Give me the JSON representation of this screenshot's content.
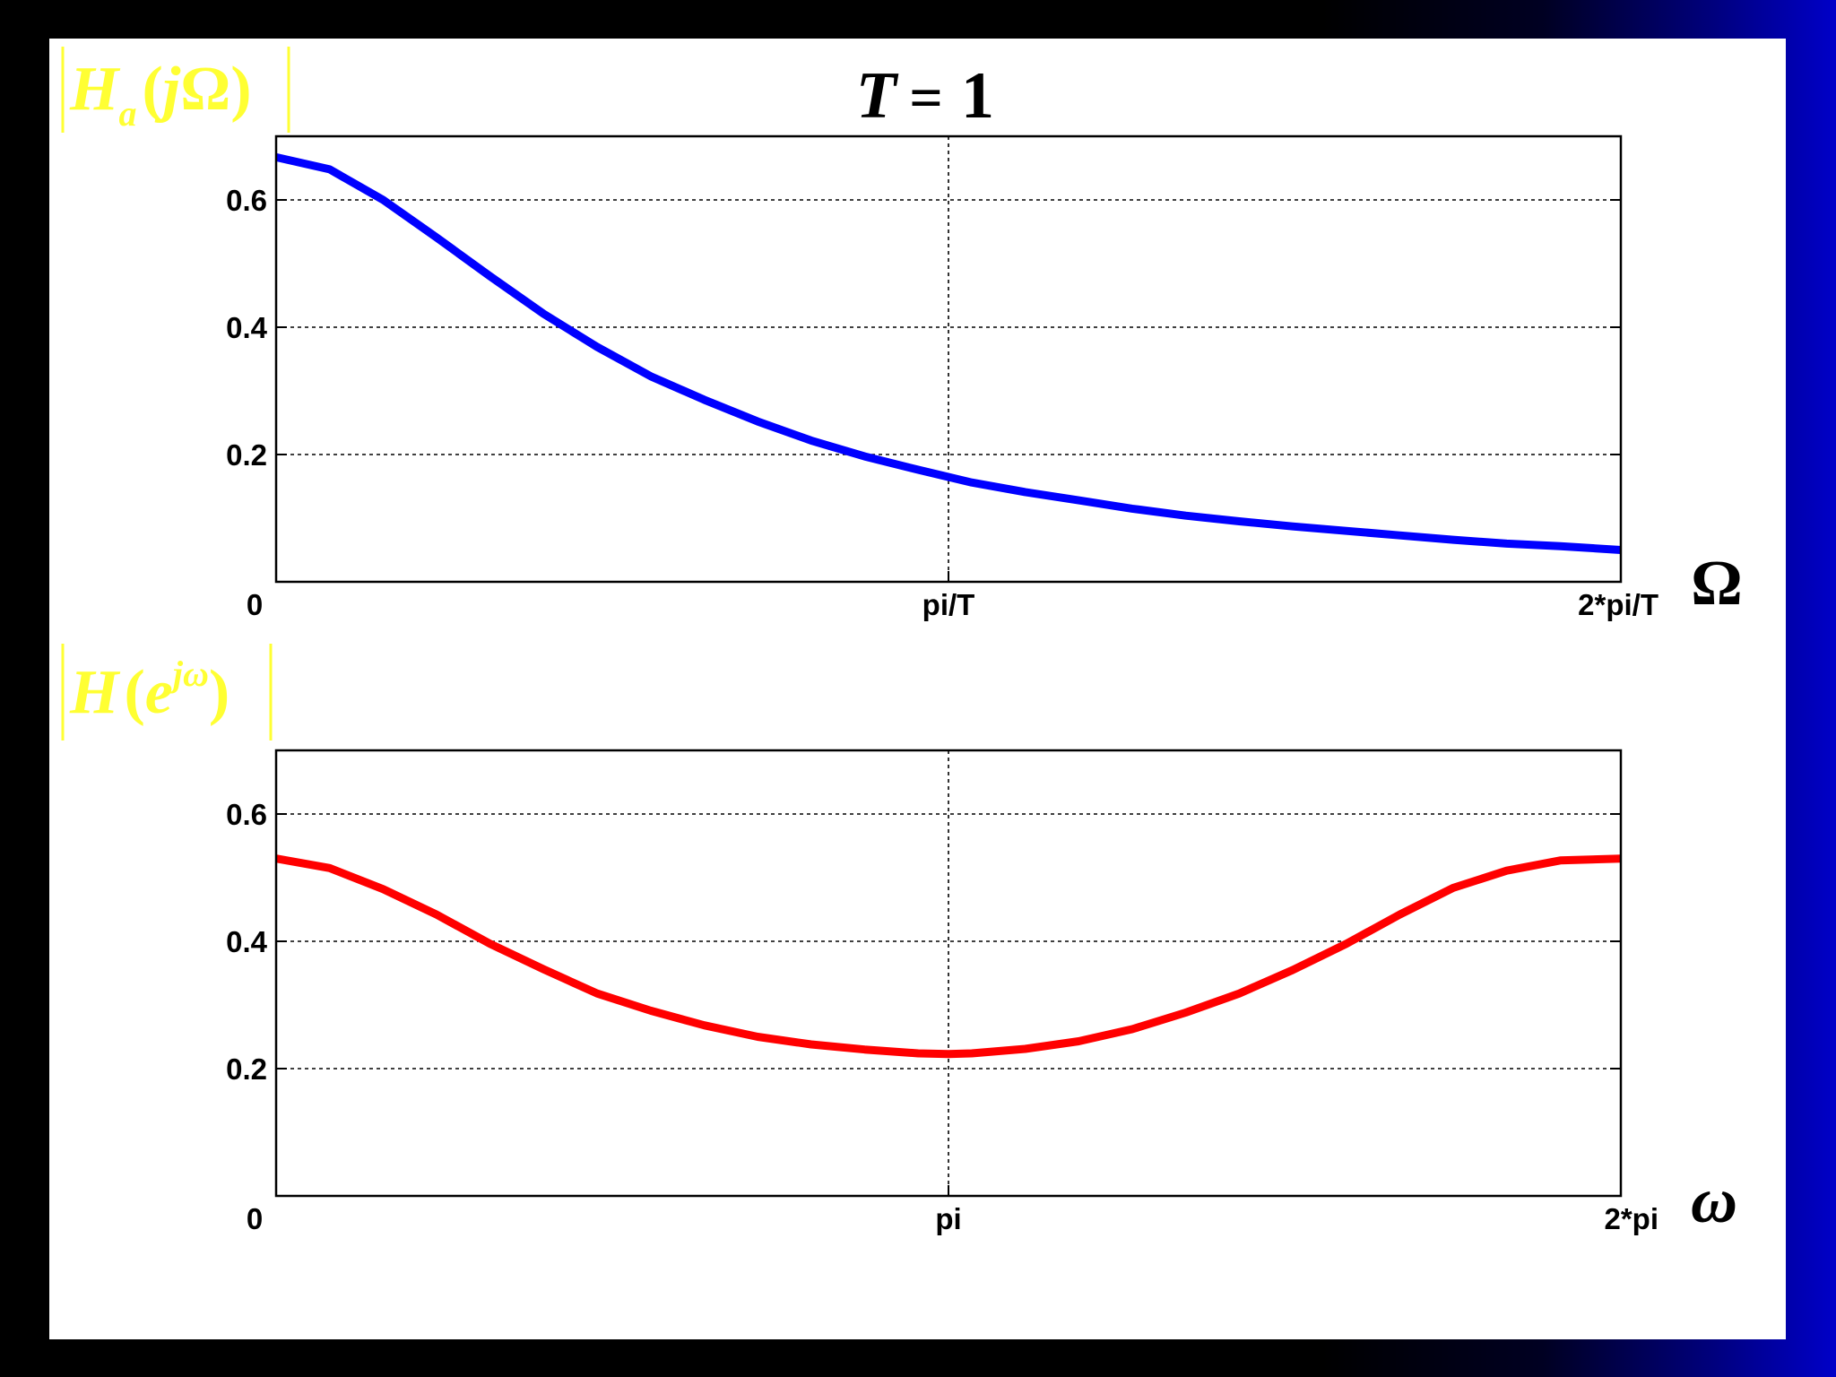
{
  "title": {
    "lhs": "T",
    "eq": "=",
    "rhs": "1"
  },
  "colors": {
    "background": "#000000",
    "panel": "#ffffff",
    "label": "#ffff33",
    "blue_series": "#0000ff",
    "red_series": "#ff0000",
    "grid": "#000000"
  },
  "chart_data": [
    {
      "type": "line",
      "ylabel": {
        "H": "H",
        "sub": "a",
        "open": "(",
        "j": "j",
        "omega": "Ω",
        "close": ")"
      },
      "xlabel": "Ω",
      "xlim": [
        0,
        6.2832
      ],
      "ylim": [
        0,
        0.7
      ],
      "xticks": [
        {
          "value": 0,
          "label": "0"
        },
        {
          "value": 3.1416,
          "label": "pi/T"
        },
        {
          "value": 6.2832,
          "label": "2*pi/T"
        }
      ],
      "yticks": [
        {
          "value": 0.2,
          "label": "0.2"
        },
        {
          "value": 0.4,
          "label": "0.4"
        },
        {
          "value": 0.6,
          "label": "0.6"
        }
      ],
      "grid": true,
      "series": [
        {
          "color": "#0000ff",
          "x": [
            0,
            0.25,
            0.5,
            0.75,
            1.0,
            1.25,
            1.5,
            1.75,
            2.0,
            2.25,
            2.5,
            2.75,
            3.0,
            3.25,
            3.5,
            3.75,
            4.0,
            4.25,
            4.5,
            4.75,
            5.0,
            5.25,
            5.5,
            5.75,
            6.0,
            6.2832
          ],
          "y": [
            0.667,
            0.648,
            0.6,
            0.541,
            0.48,
            0.421,
            0.369,
            0.323,
            0.286,
            0.252,
            0.222,
            0.197,
            0.176,
            0.156,
            0.141,
            0.128,
            0.115,
            0.104,
            0.095,
            0.087,
            0.08,
            0.073,
            0.066,
            0.06,
            0.056,
            0.05
          ]
        }
      ]
    },
    {
      "type": "line",
      "ylabel": {
        "H": "H",
        "open": "(",
        "e": "e",
        "sup": "jω",
        "close": ")"
      },
      "xlabel": "ω",
      "xlim": [
        0,
        6.2832
      ],
      "ylim": [
        0,
        0.7
      ],
      "xticks": [
        {
          "value": 0,
          "label": "0"
        },
        {
          "value": 3.1416,
          "label": "pi"
        },
        {
          "value": 6.2832,
          "label": "2*pi"
        }
      ],
      "yticks": [
        {
          "value": 0.2,
          "label": "0.2"
        },
        {
          "value": 0.4,
          "label": "0.4"
        },
        {
          "value": 0.6,
          "label": "0.6"
        }
      ],
      "grid": true,
      "series": [
        {
          "color": "#ff0000",
          "x": [
            0,
            0.25,
            0.5,
            0.75,
            1.0,
            1.25,
            1.5,
            1.75,
            2.0,
            2.25,
            2.5,
            2.75,
            3.0,
            3.1416,
            3.25,
            3.5,
            3.75,
            4.0,
            4.25,
            4.5,
            4.75,
            5.0,
            5.25,
            5.5,
            5.75,
            6.0,
            6.2832
          ],
          "y": [
            0.53,
            0.515,
            0.482,
            0.442,
            0.396,
            0.356,
            0.318,
            0.291,
            0.268,
            0.25,
            0.238,
            0.23,
            0.224,
            0.223,
            0.224,
            0.231,
            0.243,
            0.262,
            0.288,
            0.318,
            0.355,
            0.396,
            0.442,
            0.484,
            0.511,
            0.527,
            0.53
          ]
        }
      ]
    }
  ]
}
